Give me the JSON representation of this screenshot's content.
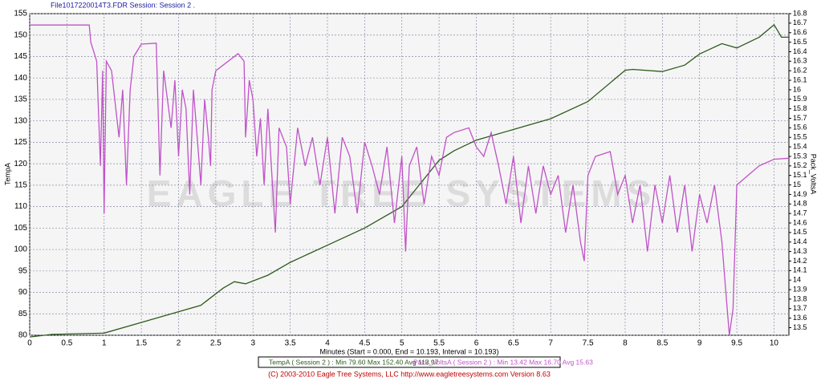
{
  "chart_data": {
    "type": "line",
    "title": "File1017220014T3.FDR  Session: Session 2 .",
    "xlabel": "Minutes (Start = 0.000, End = 10.193, Interval = 10.193)",
    "ylabel": "TempA",
    "y2label": "Pack_VoltsA",
    "watermark": "EAGLE TREE SYSTEMS",
    "footer": "(C) 2003-2010 Eagle Tree Systems, LLC     http://www.eagletreesystems.com     Version 8.63",
    "grid": true,
    "xlim": [
      0,
      10.2
    ],
    "xticks": [
      0,
      0.5,
      1,
      1.5,
      2,
      2.5,
      3,
      3.5,
      4,
      4.5,
      5,
      5.5,
      6,
      6.5,
      7,
      7.5,
      8,
      8.5,
      9,
      9.5,
      10
    ],
    "ylim": [
      80,
      155
    ],
    "yticks": [
      80,
      85,
      90,
      95,
      100,
      105,
      110,
      115,
      120,
      125,
      130,
      135,
      140,
      145,
      150,
      155
    ],
    "y2lim": [
      13.42,
      16.8
    ],
    "y2ticks": [
      13.5,
      13.6,
      13.7,
      13.8,
      13.9,
      14,
      14.1,
      14.2,
      14.3,
      14.4,
      14.5,
      14.6,
      14.7,
      14.8,
      14.9,
      15,
      15.1,
      15.2,
      15.3,
      15.4,
      15.5,
      15.6,
      15.7,
      15.8,
      15.9,
      16,
      16.1,
      16.2,
      16.3,
      16.4,
      16.5,
      16.6,
      16.7,
      16.8
    ],
    "series": [
      {
        "name": "TempA ( Session 2 ) : Min 79.60  Max 152.40  Avg 113.97",
        "color": "#2e5a1c",
        "axis": "y",
        "x": [
          0,
          0.3,
          1.0,
          1.5,
          2.0,
          2.3,
          2.6,
          2.75,
          2.9,
          3.2,
          3.5,
          4.0,
          4.5,
          5.0,
          5.5,
          5.7,
          6.0,
          6.5,
          7.0,
          7.5,
          8.0,
          8.1,
          8.5,
          8.8,
          9.0,
          9.3,
          9.5,
          9.8,
          10.0,
          10.05,
          10.1,
          10.2
        ],
        "values": [
          79.6,
          80.2,
          80.5,
          83,
          85.5,
          87,
          91,
          92.5,
          92,
          94,
          97,
          101,
          105,
          110,
          120.8,
          123,
          125.5,
          128,
          130.5,
          134.5,
          141.8,
          142,
          141.5,
          143,
          145.6,
          148,
          147,
          149.5,
          152.4,
          151,
          149.5,
          149.5
        ]
      },
      {
        "name": "Pack_VoltsA ( Session 2 ) : Min 13.42  Max 16.70  Avg 15.63",
        "color": "#c052c8",
        "axis": "y2",
        "x": [
          0,
          0.8,
          0.82,
          0.9,
          0.95,
          0.98,
          1.0,
          1.03,
          1.1,
          1.2,
          1.25,
          1.3,
          1.35,
          1.4,
          1.5,
          1.7,
          1.75,
          1.8,
          1.85,
          1.9,
          1.95,
          2.0,
          2.05,
          2.1,
          2.15,
          2.2,
          2.25,
          2.3,
          2.35,
          2.4,
          2.43,
          2.45,
          2.5,
          2.8,
          2.88,
          2.9,
          2.95,
          3.0,
          3.05,
          3.1,
          3.15,
          3.2,
          3.3,
          3.35,
          3.45,
          3.5,
          3.6,
          3.7,
          3.8,
          3.9,
          4.0,
          4.1,
          4.2,
          4.3,
          4.4,
          4.5,
          4.6,
          4.7,
          4.8,
          4.9,
          5.0,
          5.05,
          5.1,
          5.2,
          5.3,
          5.4,
          5.5,
          5.6,
          5.7,
          5.9,
          6.0,
          6.1,
          6.2,
          6.3,
          6.4,
          6.5,
          6.6,
          6.7,
          6.8,
          6.9,
          7.0,
          7.1,
          7.2,
          7.3,
          7.4,
          7.45,
          7.5,
          7.6,
          7.8,
          7.9,
          8.0,
          8.1,
          8.2,
          8.3,
          8.4,
          8.5,
          8.6,
          8.7,
          8.8,
          8.9,
          9.0,
          9.1,
          9.2,
          9.3,
          9.35,
          9.4,
          9.45,
          9.5,
          9.8,
          10.0,
          10.2
        ],
        "values": [
          16.68,
          16.68,
          16.5,
          16.3,
          15.2,
          16.2,
          14.7,
          16.3,
          16.2,
          15.5,
          16.0,
          15.0,
          16.0,
          16.35,
          16.48,
          16.49,
          15.1,
          16.2,
          15.9,
          15.6,
          16.1,
          15.3,
          16.0,
          15.8,
          14.9,
          16.0,
          15.5,
          15.0,
          15.9,
          15.5,
          15.2,
          16.0,
          16.2,
          16.38,
          16.3,
          15.5,
          16.1,
          15.9,
          15.3,
          15.7,
          15.0,
          15.8,
          14.5,
          15.6,
          15.4,
          14.8,
          15.6,
          15.2,
          15.5,
          15.0,
          15.5,
          14.7,
          15.5,
          15.3,
          14.7,
          15.45,
          15.2,
          14.9,
          15.4,
          14.6,
          15.3,
          14.3,
          15.2,
          15.4,
          14.8,
          15.3,
          15.1,
          15.5,
          15.55,
          15.6,
          15.4,
          15.3,
          15.55,
          15.2,
          14.8,
          15.3,
          14.6,
          15.2,
          14.7,
          15.2,
          14.9,
          15.1,
          14.5,
          15.0,
          14.4,
          14.2,
          15.1,
          15.3,
          15.35,
          14.9,
          15.1,
          14.6,
          15.0,
          14.3,
          15.0,
          14.6,
          15.1,
          14.5,
          15.0,
          14.3,
          14.9,
          14.6,
          15.0,
          14.4,
          13.9,
          13.42,
          13.7,
          15.0,
          15.2,
          15.27,
          15.28
        ]
      }
    ]
  }
}
